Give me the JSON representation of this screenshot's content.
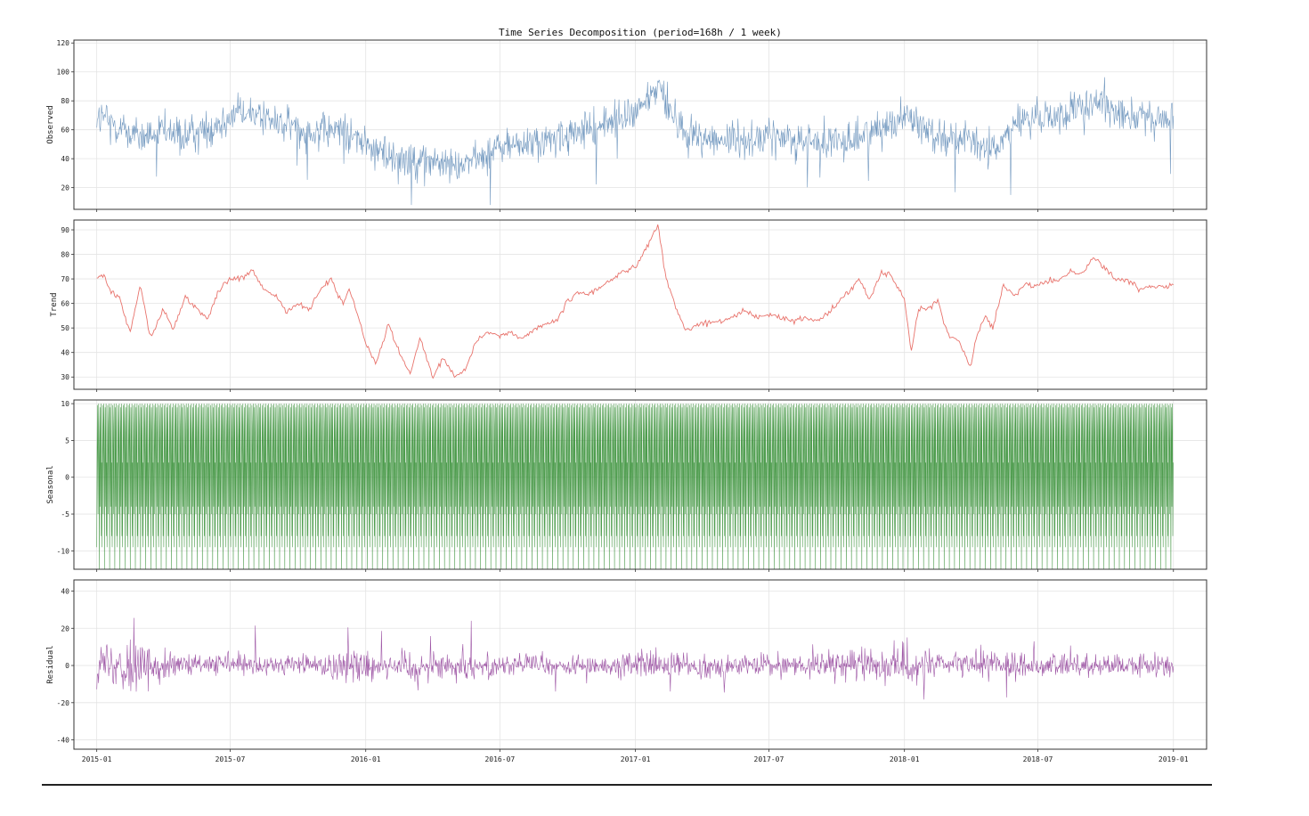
{
  "chart_data": [
    {
      "type": "line",
      "title": "Time Series Decomposition (period=168h / 1 week)",
      "ylabel": "Observed",
      "color": "#5b87b5",
      "ylim": [
        5,
        122
      ],
      "yticks": [
        20,
        40,
        60,
        80,
        100,
        120
      ],
      "xlim": [
        "2014-12-01",
        "2019-02-15"
      ],
      "grid": true,
      "series": [
        {
          "x": [
            "2015-01",
            "2015-02",
            "2015-03",
            "2015-04",
            "2015-05",
            "2015-06",
            "2015-07",
            "2015-08",
            "2015-09",
            "2015-10",
            "2015-11",
            "2015-12",
            "2016-01",
            "2016-02",
            "2016-03",
            "2016-04",
            "2016-05",
            "2016-06",
            "2016-07",
            "2016-08",
            "2016-09",
            "2016-10",
            "2016-11",
            "2016-12",
            "2017-01",
            "2017-02",
            "2017-03",
            "2017-04",
            "2017-05",
            "2017-06",
            "2017-07",
            "2017-08",
            "2017-09",
            "2017-10",
            "2017-11",
            "2017-12",
            "2018-01",
            "2018-02",
            "2018-03",
            "2018-04",
            "2018-05",
            "2018-06",
            "2018-07",
            "2018-08",
            "2018-09",
            "2018-10",
            "2018-11",
            "2018-12",
            "2019-01"
          ],
          "values": [
            70,
            62,
            54,
            58,
            55,
            60,
            70,
            72,
            65,
            62,
            58,
            60,
            50,
            42,
            40,
            38,
            35,
            40,
            48,
            50,
            52,
            55,
            60,
            66,
            72,
            90,
            62,
            55,
            52,
            54,
            55,
            54,
            52,
            50,
            55,
            62,
            70,
            60,
            55,
            52,
            45,
            65,
            68,
            70,
            75,
            78,
            72,
            66,
            67
          ]
        }
      ]
    },
    {
      "type": "line",
      "ylabel": "Trend",
      "color": "#e8736c",
      "ylim": [
        25,
        94
      ],
      "yticks": [
        30,
        40,
        50,
        60,
        70,
        80,
        90
      ],
      "xlim": [
        "2014-12-01",
        "2019-02-15"
      ],
      "grid": true,
      "series": [
        {
          "x": [
            "2015-01-01",
            "2015-01-10",
            "2015-01-20",
            "2015-02-01",
            "2015-02-15",
            "2015-03-01",
            "2015-03-15",
            "2015-04-01",
            "2015-04-15",
            "2015-05-01",
            "2015-05-15",
            "2015-06-01",
            "2015-06-15",
            "2015-07-01",
            "2015-07-15",
            "2015-08-01",
            "2015-08-15",
            "2015-09-01",
            "2015-09-15",
            "2015-10-01",
            "2015-10-15",
            "2015-11-01",
            "2015-11-15",
            "2015-12-01",
            "2015-12-10",
            "2016-01-01",
            "2016-01-15",
            "2016-02-01",
            "2016-02-15",
            "2016-03-01",
            "2016-03-15",
            "2016-04-01",
            "2016-04-15",
            "2016-05-01",
            "2016-05-15",
            "2016-06-01",
            "2016-06-15",
            "2016-07-01",
            "2016-07-15",
            "2016-08-01",
            "2016-08-15",
            "2016-09-01",
            "2016-09-15",
            "2016-10-01",
            "2016-10-15",
            "2016-11-01",
            "2016-11-15",
            "2016-12-01",
            "2016-12-15",
            "2017-01-01",
            "2017-01-15",
            "2017-02-01",
            "2017-02-10",
            "2017-02-25",
            "2017-03-10",
            "2017-04-01",
            "2017-04-15",
            "2017-05-01",
            "2017-05-15",
            "2017-06-01",
            "2017-06-15",
            "2017-07-01",
            "2017-07-15",
            "2017-08-01",
            "2017-08-15",
            "2017-09-01",
            "2017-09-15",
            "2017-10-01",
            "2017-10-15",
            "2017-11-01",
            "2017-11-15",
            "2017-12-01",
            "2017-12-15",
            "2018-01-01",
            "2018-01-10",
            "2018-01-20",
            "2018-02-01",
            "2018-02-15",
            "2018-03-01",
            "2018-03-15",
            "2018-04-01",
            "2018-04-10",
            "2018-04-20",
            "2018-05-01",
            "2018-05-15",
            "2018-06-01",
            "2018-06-15",
            "2018-07-01",
            "2018-07-15",
            "2018-08-01",
            "2018-08-15",
            "2018-09-01",
            "2018-09-15",
            "2018-10-01",
            "2018-10-15",
            "2018-11-01",
            "2018-11-15",
            "2018-12-01",
            "2018-12-15",
            "2019-01-01"
          ],
          "values": [
            70,
            72,
            65,
            62,
            48,
            68,
            46,
            58,
            49,
            63,
            58,
            54,
            65,
            70,
            70,
            73,
            66,
            63,
            57,
            60,
            57,
            66,
            70,
            60,
            66,
            44,
            35,
            52,
            40,
            31,
            46,
            29,
            38,
            30,
            33,
            46,
            48,
            47,
            48,
            46,
            49,
            52,
            52,
            61,
            64,
            64,
            67,
            70,
            73,
            75,
            82,
            92,
            72,
            58,
            49,
            52,
            52,
            53,
            55,
            57,
            54,
            56,
            54,
            53,
            54,
            53,
            55,
            60,
            64,
            70,
            62,
            73,
            71,
            62,
            40,
            58,
            58,
            61,
            47,
            45,
            34,
            48,
            55,
            50,
            67,
            63,
            68,
            67,
            69,
            70,
            73,
            73,
            79,
            74,
            70,
            69,
            66,
            67,
            67,
            68
          ]
        }
      ]
    },
    {
      "type": "line",
      "ylabel": "Seasonal",
      "color": "#2e8b2e",
      "ylim": [
        -12.5,
        10.5
      ],
      "yticks": [
        -10,
        -5,
        0,
        5,
        10
      ],
      "xlim": [
        "2014-12-01",
        "2019-02-15"
      ],
      "grid": true,
      "series": [
        {
          "period": "168h / 1 week",
          "x_range": [
            "2015-01",
            "2019-01"
          ],
          "min": -12.5,
          "max": 10
        }
      ]
    },
    {
      "type": "line",
      "ylabel": "Residual",
      "xlabel": "",
      "color": "#8e3b96",
      "ylim": [
        -45,
        46
      ],
      "yticks": [
        -40,
        -20,
        0,
        20,
        40
      ],
      "xlim": [
        "2014-12-01",
        "2019-02-15"
      ],
      "xticks": [
        "2015-01",
        "2015-07",
        "2016-01",
        "2016-07",
        "2017-01",
        "2017-07",
        "2018-01",
        "2018-07",
        "2019-01"
      ],
      "grid": true,
      "series": [
        {
          "x": [
            "2015-01",
            "2015-02",
            "2015-03",
            "2015-04",
            "2015-05",
            "2015-06",
            "2015-07",
            "2015-08",
            "2015-09",
            "2015-10",
            "2015-11",
            "2015-12",
            "2016-01",
            "2016-02",
            "2016-03",
            "2016-04",
            "2016-05",
            "2016-06",
            "2016-07",
            "2016-08",
            "2016-09",
            "2016-10",
            "2016-11",
            "2016-12",
            "2017-01",
            "2017-02",
            "2017-03",
            "2017-04",
            "2017-05",
            "2017-06",
            "2017-07",
            "2017-08",
            "2017-09",
            "2017-10",
            "2017-11",
            "2017-12",
            "2018-01",
            "2018-02",
            "2018-03",
            "2018-04",
            "2018-05",
            "2018-06",
            "2018-07",
            "2018-08",
            "2018-09",
            "2018-10",
            "2018-11",
            "2018-12",
            "2019-01"
          ],
          "values": [
            0,
            2,
            -1,
            1,
            0,
            0,
            1,
            -1,
            0,
            1,
            0,
            0,
            0,
            1,
            -1,
            0,
            0,
            0,
            0,
            1,
            0,
            -1,
            0,
            0,
            1,
            0,
            0,
            0,
            -1,
            0,
            0,
            0,
            0,
            0,
            0,
            1,
            0,
            0,
            0,
            0,
            1,
            0,
            0,
            0,
            0,
            0,
            0,
            0,
            0
          ],
          "amplitude": [
            18,
            20,
            25,
            10,
            8,
            8,
            8,
            9,
            8,
            8,
            10,
            12,
            14,
            12,
            12,
            10,
            10,
            9,
            9,
            8,
            8,
            7,
            7,
            8,
            12,
            10,
            9,
            8,
            9,
            8,
            8,
            8,
            8,
            10,
            12,
            14,
            14,
            12,
            10,
            12,
            12,
            10,
            8,
            8,
            8,
            8,
            8,
            8,
            8
          ]
        }
      ]
    }
  ]
}
